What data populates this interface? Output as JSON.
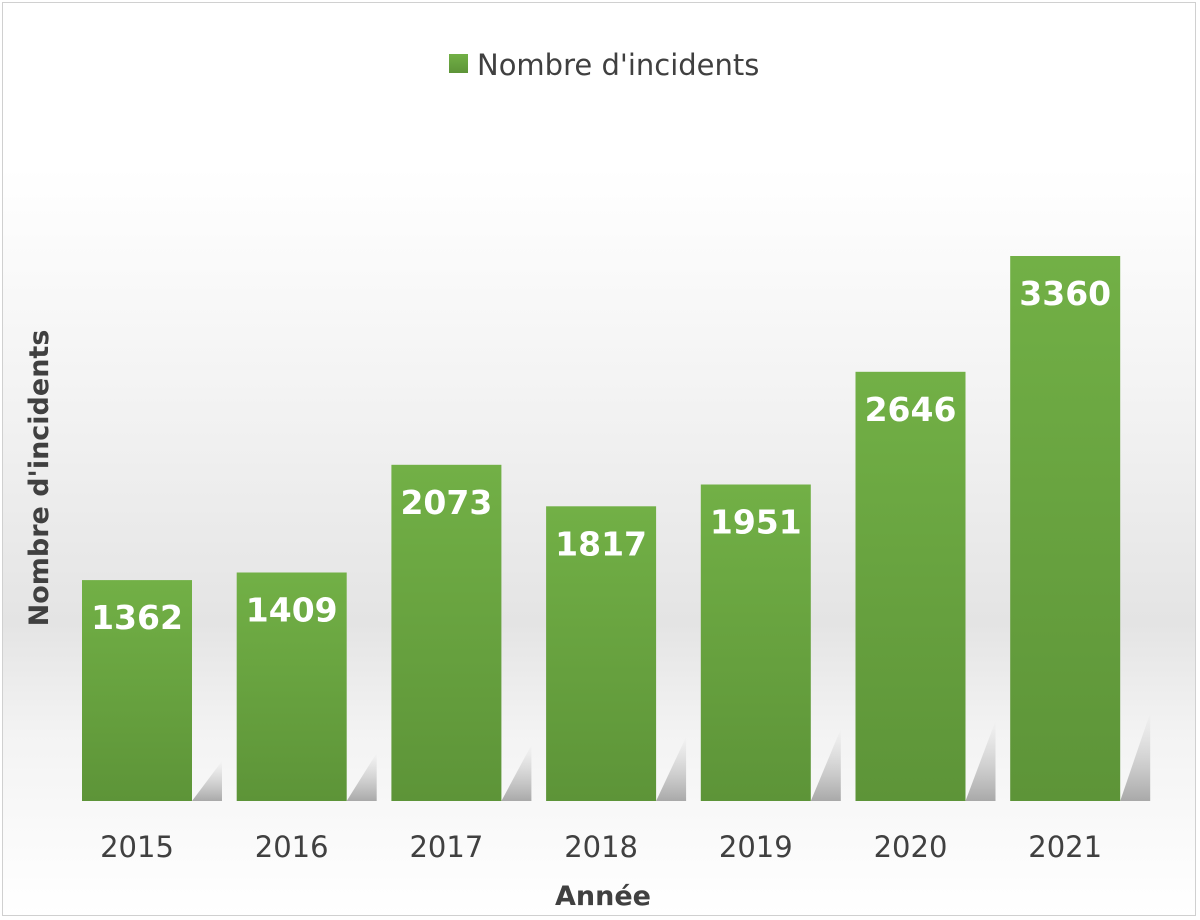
{
  "chart_data": {
    "type": "bar",
    "categories": [
      "2015",
      "2016",
      "2017",
      "2018",
      "2019",
      "2020",
      "2021"
    ],
    "series": [
      {
        "name": "Nombre d'incidents",
        "values": [
          1362,
          1409,
          2073,
          1817,
          1951,
          2646,
          3360
        ],
        "color": "#70ad47"
      }
    ],
    "xlabel": "Année",
    "ylabel": "Nombre d'incidents",
    "ylim": [
      0,
      3360
    ],
    "grid": false,
    "legend": "top-center",
    "data_labels": true
  }
}
